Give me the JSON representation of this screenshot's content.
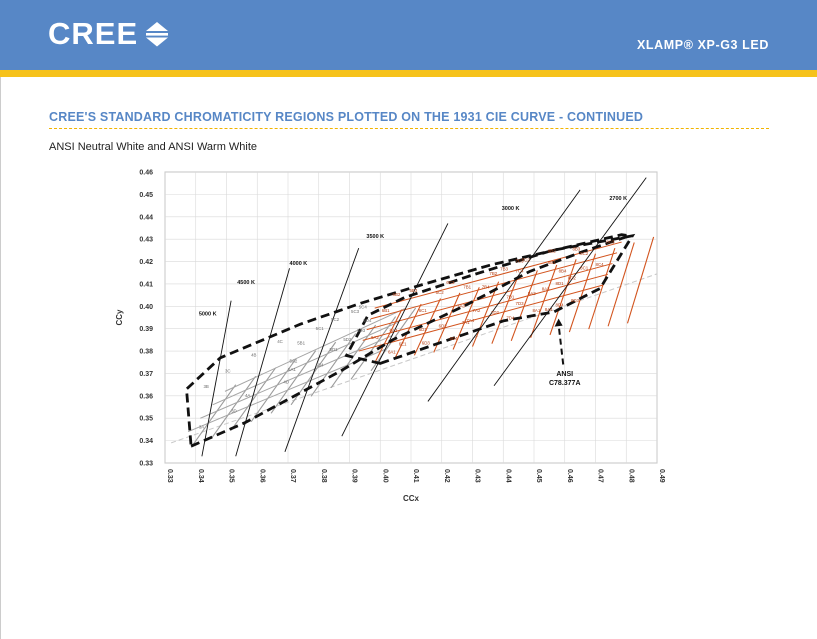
{
  "header": {
    "logo_text": "CREE",
    "product": "XLAMP® XP-G3 LED",
    "colors": {
      "band": "#5787c6",
      "stripe": "#f6c21b"
    }
  },
  "page": {
    "title": "CREE'S STANDARD CHROMATICITY REGIONS PLOTTED ON THE 1931 CIE CURVE - CONTINUED",
    "subtitle": "ANSI Neutral White and ANSI Warm White"
  },
  "chart_data": {
    "type": "scatter",
    "xlabel": "CCx",
    "ylabel": "CCy",
    "xlim": [
      0.33,
      0.49
    ],
    "ylim": [
      0.33,
      0.46
    ],
    "grid": true,
    "x_ticks": [
      "0.33",
      "0.34",
      "0.35",
      "0.36",
      "0.37",
      "0.38",
      "0.39",
      "0.40",
      "0.41",
      "0.42",
      "0.43",
      "0.44",
      "0.45",
      "0.46",
      "0.47",
      "0.48",
      "0.49"
    ],
    "y_ticks": [
      "0.33",
      "0.34",
      "0.35",
      "0.36",
      "0.37",
      "0.38",
      "0.39",
      "0.40",
      "0.41",
      "0.42",
      "0.43",
      "0.44",
      "0.45",
      "0.46"
    ],
    "cct_lines": [
      {
        "label": "5000 K",
        "x1": 0.342,
        "y1": 0.333,
        "x2": 0.3515,
        "y2": 0.4025,
        "lx": 0.341,
        "ly": 0.396
      },
      {
        "label": "4500 K",
        "x1": 0.353,
        "y1": 0.333,
        "x2": 0.3705,
        "y2": 0.417,
        "lx": 0.3535,
        "ly": 0.41
      },
      {
        "label": "4000 K",
        "x1": 0.369,
        "y1": 0.335,
        "x2": 0.393,
        "y2": 0.426,
        "lx": 0.3705,
        "ly": 0.4185
      },
      {
        "label": "3500 K",
        "x1": 0.3875,
        "y1": 0.342,
        "x2": 0.422,
        "y2": 0.437,
        "lx": 0.3955,
        "ly": 0.4305
      },
      {
        "label": "3000 K",
        "x1": 0.4155,
        "y1": 0.3575,
        "x2": 0.465,
        "y2": 0.452,
        "lx": 0.4395,
        "ly": 0.443
      },
      {
        "label": "2700 K",
        "x1": 0.437,
        "y1": 0.3645,
        "x2": 0.4865,
        "y2": 0.4575,
        "lx": 0.4745,
        "ly": 0.4475
      }
    ],
    "neutral_white_region": [
      [
        0.3385,
        0.3375
      ],
      [
        0.356,
        0.348
      ],
      [
        0.387,
        0.371
      ],
      [
        0.404,
        0.385
      ],
      [
        0.4285,
        0.401
      ],
      [
        0.4485,
        0.4155
      ],
      [
        0.465,
        0.424
      ],
      [
        0.481,
        0.4315
      ],
      [
        0.4785,
        0.432
      ],
      [
        0.458,
        0.4255
      ],
      [
        0.436,
        0.4185
      ],
      [
        0.4145,
        0.41
      ],
      [
        0.394,
        0.4015
      ],
      [
        0.374,
        0.392
      ],
      [
        0.348,
        0.377
      ],
      [
        0.337,
        0.363
      ]
    ],
    "warm_white_region": [
      [
        0.4,
        0.3745
      ],
      [
        0.44,
        0.3935
      ],
      [
        0.4565,
        0.3975
      ],
      [
        0.4715,
        0.408
      ],
      [
        0.482,
        0.4315
      ],
      [
        0.456,
        0.425
      ],
      [
        0.43,
        0.414
      ],
      [
        0.408,
        0.404
      ],
      [
        0.396,
        0.396
      ],
      [
        0.389,
        0.378
      ]
    ],
    "bins_neutral": [
      {
        "label": "3A",
        "x": 0.341,
        "y": 0.3455
      },
      {
        "label": "3B",
        "x": 0.3425,
        "y": 0.3635
      },
      {
        "label": "3C",
        "x": 0.3495,
        "y": 0.3705
      },
      {
        "label": "3D",
        "x": 0.3515,
        "y": 0.3525
      },
      {
        "label": "4A",
        "x": 0.356,
        "y": 0.3595
      },
      {
        "label": "4B",
        "x": 0.358,
        "y": 0.3775
      },
      {
        "label": "4C",
        "x": 0.3665,
        "y": 0.3835
      },
      {
        "label": "4D",
        "x": 0.3685,
        "y": 0.3655
      },
      {
        "label": "5A1",
        "x": 0.37,
        "y": 0.371
      },
      {
        "label": "5A2",
        "x": 0.3705,
        "y": 0.375
      },
      {
        "label": "5B1",
        "x": 0.373,
        "y": 0.383
      },
      {
        "label": "5C1",
        "x": 0.379,
        "y": 0.3895
      },
      {
        "label": "5D1",
        "x": 0.3835,
        "y": 0.38
      },
      {
        "label": "5C2",
        "x": 0.384,
        "y": 0.3935
      },
      {
        "label": "5D2",
        "x": 0.388,
        "y": 0.3845
      },
      {
        "label": "5C3",
        "x": 0.3905,
        "y": 0.397
      },
      {
        "label": "5D3",
        "x": 0.3925,
        "y": 0.3885
      },
      {
        "label": "5D4",
        "x": 0.3945,
        "y": 0.393
      },
      {
        "label": "5C4",
        "x": 0.393,
        "y": 0.399
      },
      {
        "label": "5B4",
        "x": 0.379,
        "y": 0.373
      }
    ],
    "bins_warm": [
      {
        "label": "6A1",
        "x": 0.4025,
        "y": 0.379
      },
      {
        "label": "6A2",
        "x": 0.397,
        "y": 0.3855
      },
      {
        "label": "6A3",
        "x": 0.403,
        "y": 0.3885
      },
      {
        "label": "6B1",
        "x": 0.4005,
        "y": 0.3975
      },
      {
        "label": "6B2",
        "x": 0.404,
        "y": 0.4045
      },
      {
        "label": "6B3",
        "x": 0.4095,
        "y": 0.4065
      },
      {
        "label": "6C1",
        "x": 0.4125,
        "y": 0.3975
      },
      {
        "label": "6C2",
        "x": 0.418,
        "y": 0.4055
      },
      {
        "label": "6C3",
        "x": 0.4215,
        "y": 0.41
      },
      {
        "label": "6D1",
        "x": 0.4125,
        "y": 0.389
      },
      {
        "label": "6D2",
        "x": 0.419,
        "y": 0.3905
      },
      {
        "label": "6D3",
        "x": 0.4135,
        "y": 0.383
      },
      {
        "label": "6D4",
        "x": 0.4225,
        "y": 0.385
      },
      {
        "label": "6E1",
        "x": 0.406,
        "y": 0.3825
      },
      {
        "label": "7A1",
        "x": 0.4265,
        "y": 0.392
      },
      {
        "label": "7A2",
        "x": 0.43,
        "y": 0.3975
      },
      {
        "label": "7A3",
        "x": 0.425,
        "y": 0.3995
      },
      {
        "label": "7A4",
        "x": 0.428,
        "y": 0.393
      },
      {
        "label": "7B1",
        "x": 0.427,
        "y": 0.408
      },
      {
        "label": "7B2",
        "x": 0.4355,
        "y": 0.414
      },
      {
        "label": "7B3",
        "x": 0.439,
        "y": 0.416
      },
      {
        "label": "7B4",
        "x": 0.433,
        "y": 0.408
      },
      {
        "label": "7C2",
        "x": 0.446,
        "y": 0.42
      },
      {
        "label": "7C3",
        "x": 0.444,
        "y": 0.4195
      },
      {
        "label": "7C4",
        "x": 0.444,
        "y": 0.415
      },
      {
        "label": "7D1",
        "x": 0.441,
        "y": 0.4035
      },
      {
        "label": "7D2",
        "x": 0.436,
        "y": 0.3965
      },
      {
        "label": "7D3",
        "x": 0.444,
        "y": 0.4005
      },
      {
        "label": "7D4",
        "x": 0.441,
        "y": 0.394
      },
      {
        "label": "8A1",
        "x": 0.4495,
        "y": 0.3975
      },
      {
        "label": "8A2",
        "x": 0.448,
        "y": 0.405
      },
      {
        "label": "8A3",
        "x": 0.4525,
        "y": 0.407
      },
      {
        "label": "8A4",
        "x": 0.4535,
        "y": 0.398
      },
      {
        "label": "8B1",
        "x": 0.4545,
        "y": 0.419
      },
      {
        "label": "8B2",
        "x": 0.4545,
        "y": 0.424
      },
      {
        "label": "8B3",
        "x": 0.4625,
        "y": 0.425
      },
      {
        "label": "8B4",
        "x": 0.458,
        "y": 0.415
      },
      {
        "label": "8C1",
        "x": 0.465,
        "y": 0.4165
      },
      {
        "label": "8C2",
        "x": 0.465,
        "y": 0.423
      },
      {
        "label": "8C3",
        "x": 0.4735,
        "y": 0.428
      },
      {
        "label": "8C4",
        "x": 0.47,
        "y": 0.418
      },
      {
        "label": "8D1",
        "x": 0.457,
        "y": 0.4095
      },
      {
        "label": "8D2",
        "x": 0.461,
        "y": 0.412
      },
      {
        "label": "8D3",
        "x": 0.462,
        "y": 0.402
      },
      {
        "label": "8D4",
        "x": 0.457,
        "y": 0.4
      }
    ],
    "annotation": {
      "lines": [
        "ANSI",
        "C78.377A"
      ],
      "x": 0.46,
      "y": 0.3715,
      "arrow_to": [
        0.458,
        0.3945
      ]
    }
  }
}
